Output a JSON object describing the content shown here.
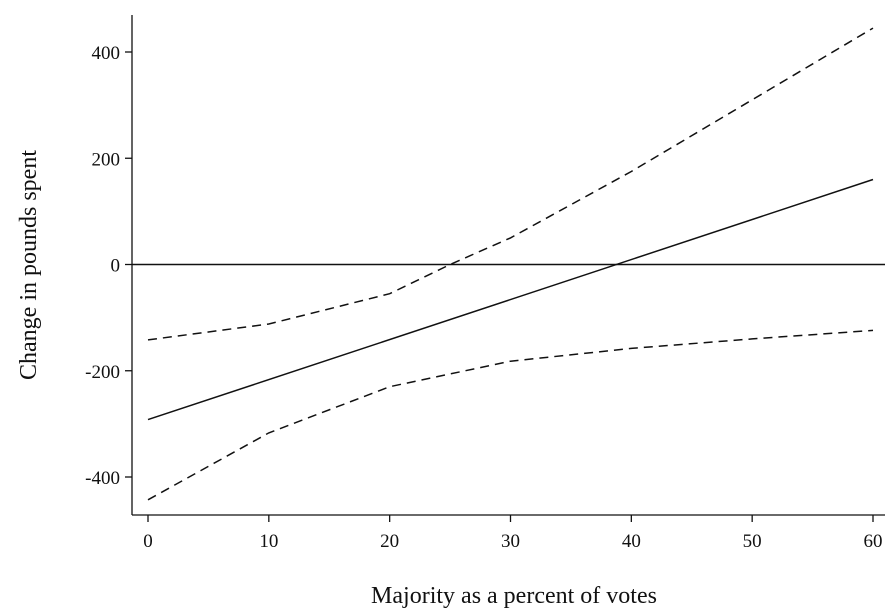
{
  "chart_data": {
    "type": "line",
    "title": "",
    "xlabel": "Majority as a percent of votes",
    "ylabel": "Change in pounds spent",
    "xlim": [
      -1,
      61
    ],
    "ylim": [
      -470,
      470
    ],
    "x_ticks": [
      0,
      10,
      20,
      30,
      40,
      50,
      60
    ],
    "y_ticks": [
      -400,
      -200,
      0,
      200,
      400
    ],
    "x_tick_labels": [
      "0",
      "10",
      "20",
      "30",
      "40",
      "50",
      "60"
    ],
    "y_tick_labels": [
      "-400",
      "-200",
      "0",
      "200",
      "400"
    ],
    "grid": false,
    "legend": "none",
    "reference_line": {
      "y": 0,
      "color": "#111111"
    },
    "series": [
      {
        "style": "solid",
        "color": "#111111",
        "x": [
          0,
          60
        ],
        "y": [
          -292,
          160
        ]
      },
      {
        "style": "dashed",
        "color": "#111111",
        "x": [
          0,
          10,
          20,
          25,
          30,
          40,
          50,
          60
        ],
        "y": [
          -142,
          -112,
          -55,
          0,
          50,
          175,
          310,
          445
        ]
      },
      {
        "style": "dashed",
        "color": "#111111",
        "x": [
          0,
          10,
          20,
          30,
          40,
          50,
          60
        ],
        "y": [
          -443,
          -317,
          -230,
          -182,
          -158,
          -140,
          -124
        ]
      }
    ]
  }
}
